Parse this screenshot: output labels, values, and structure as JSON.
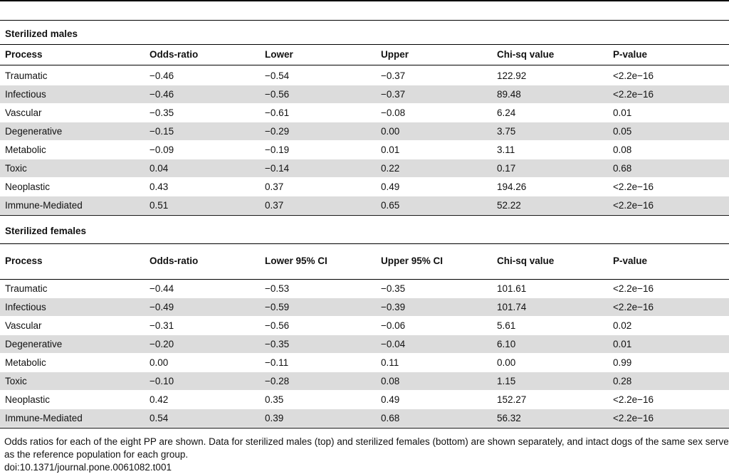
{
  "sections": [
    {
      "title": "Sterilized males",
      "columns": [
        "Process",
        "Odds-ratio",
        "Lower",
        "Upper",
        "Chi-sq value",
        "P-value"
      ],
      "rows": [
        [
          "Traumatic",
          "−0.46",
          "−0.54",
          "−0.37",
          "122.92",
          "<2.2e−16"
        ],
        [
          "Infectious",
          "−0.46",
          "−0.56",
          "−0.37",
          "89.48",
          "<2.2e−16"
        ],
        [
          "Vascular",
          "−0.35",
          "−0.61",
          "−0.08",
          "6.24",
          "0.01"
        ],
        [
          "Degenerative",
          "−0.15",
          "−0.29",
          "0.00",
          "3.75",
          "0.05"
        ],
        [
          "Metabolic",
          "−0.09",
          "−0.19",
          "0.01",
          "3.11",
          "0.08"
        ],
        [
          "Toxic",
          "0.04",
          "−0.14",
          "0.22",
          "0.17",
          "0.68"
        ],
        [
          "Neoplastic",
          "0.43",
          "0.37",
          "0.49",
          "194.26",
          "<2.2e−16"
        ],
        [
          "Immune-Mediated",
          "0.51",
          "0.37",
          "0.65",
          "52.22",
          "<2.2e−16"
        ]
      ]
    },
    {
      "title": "Sterilized females",
      "columns": [
        "Process",
        "Odds-ratio",
        "Lower 95% CI",
        "Upper 95% CI",
        "Chi-sq value",
        "P-value"
      ],
      "rows": [
        [
          "Traumatic",
          "−0.44",
          "−0.53",
          "−0.35",
          "101.61",
          "<2.2e−16"
        ],
        [
          "Infectious",
          "−0.49",
          "−0.59",
          "−0.39",
          "101.74",
          "<2.2e−16"
        ],
        [
          "Vascular",
          "−0.31",
          "−0.56",
          "−0.06",
          "5.61",
          "0.02"
        ],
        [
          "Degenerative",
          "−0.20",
          "−0.35",
          "−0.04",
          "6.10",
          "0.01"
        ],
        [
          "Metabolic",
          "0.00",
          "−0.11",
          "0.11",
          "0.00",
          "0.99"
        ],
        [
          "Toxic",
          "−0.10",
          "−0.28",
          "0.08",
          "1.15",
          "0.28"
        ],
        [
          "Neoplastic",
          "0.42",
          "0.35",
          "0.49",
          "152.27",
          "<2.2e−16"
        ],
        [
          "Immune-Mediated",
          "0.54",
          "0.39",
          "0.68",
          "56.32",
          "<2.2e−16"
        ]
      ]
    }
  ],
  "footnote": "Odds ratios for each of the eight PP are shown. Data for sterilized males (top) and sterilized females (bottom) are shown separately, and intact dogs of the same sex served as the reference population for each group.",
  "doi": "doi:10.1371/journal.pone.0061082.t001"
}
